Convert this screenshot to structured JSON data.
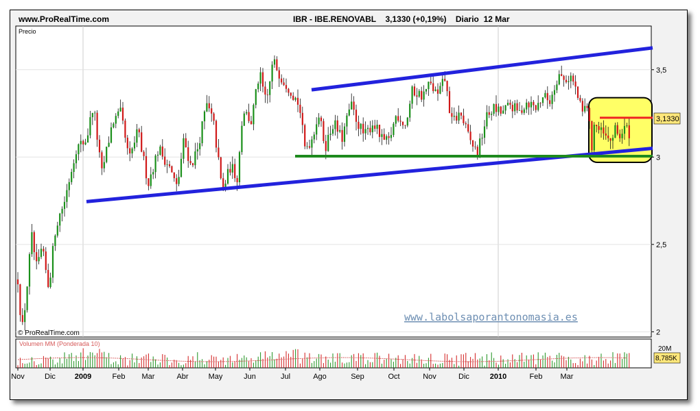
{
  "header": {
    "site": "www.ProRealTime.com",
    "instrument": "IBR - IBE.RENOVABL",
    "price": "3,1330 (+0,19%)",
    "period": "Diario",
    "date": "12 Mar"
  },
  "price_panel": {
    "label": "Precio",
    "credit": "© ProRealTime.com",
    "watermark": "www.labolsaporantonomasia.es",
    "last_price_label": "3,1330"
  },
  "volume_panel": {
    "label": "Volumen MM (Ponderada 10)",
    "axis_label": "20M",
    "last_volume_label": "8,785K"
  },
  "colors": {
    "up": "#1a8f1a",
    "down": "#d01818",
    "trendline": "#2222dd",
    "support": "#1e8a1e",
    "resistance": "#ee2222",
    "highlight_fill": "#ffff66",
    "last_price_box": "#ffe77a"
  },
  "chart_data": {
    "type": "candlestick",
    "x_ticks": [
      "Nov",
      "Dic",
      "2009",
      "Feb",
      "Mar",
      "Abr",
      "May",
      "Jun",
      "Jul",
      "Ago",
      "Sep",
      "Oct",
      "Nov",
      "Dic",
      "2010",
      "Feb",
      "Mar"
    ],
    "y_ticks": [
      "3,5",
      "3",
      "2,5",
      "2"
    ],
    "y_tick_values": [
      3.5,
      3.0,
      2.5,
      2.0
    ],
    "ylim": [
      1.97,
      3.75
    ],
    "close_path": [
      [
        0,
        2.3
      ],
      [
        6,
        2.0
      ],
      [
        12,
        2.2
      ],
      [
        20,
        2.55
      ],
      [
        28,
        2.35
      ],
      [
        35,
        2.48
      ],
      [
        45,
        2.25
      ],
      [
        55,
        2.6
      ],
      [
        68,
        2.75
      ],
      [
        85,
        3.05
      ],
      [
        100,
        3.1
      ],
      [
        110,
        3.3
      ],
      [
        122,
        2.9
      ],
      [
        138,
        3.2
      ],
      [
        150,
        3.25
      ],
      [
        162,
        2.98
      ],
      [
        175,
        3.15
      ],
      [
        190,
        2.85
      ],
      [
        205,
        3.05
      ],
      [
        220,
        2.95
      ],
      [
        232,
        2.82
      ],
      [
        242,
        3.1
      ],
      [
        252,
        2.95
      ],
      [
        262,
        3.05
      ],
      [
        275,
        3.3
      ],
      [
        285,
        3.2
      ],
      [
        298,
        2.8
      ],
      [
        310,
        2.95
      ],
      [
        320,
        2.88
      ],
      [
        328,
        3.28
      ],
      [
        340,
        3.2
      ],
      [
        352,
        3.48
      ],
      [
        362,
        3.3
      ],
      [
        372,
        3.55
      ],
      [
        385,
        3.45
      ],
      [
        395,
        3.4
      ],
      [
        410,
        3.3
      ],
      [
        418,
        3.05
      ],
      [
        428,
        3.1
      ],
      [
        438,
        3.25
      ],
      [
        448,
        3.06
      ],
      [
        460,
        3.2
      ],
      [
        472,
        3.1
      ],
      [
        485,
        3.3
      ],
      [
        495,
        3.2
      ],
      [
        505,
        3.12
      ],
      [
        518,
        3.2
      ],
      [
        530,
        3.1
      ],
      [
        540,
        3.08
      ],
      [
        552,
        3.25
      ],
      [
        565,
        3.18
      ],
      [
        575,
        3.38
      ],
      [
        590,
        3.35
      ],
      [
        600,
        3.42
      ],
      [
        612,
        3.35
      ],
      [
        622,
        3.45
      ],
      [
        632,
        3.2
      ],
      [
        645,
        3.25
      ],
      [
        658,
        3.1
      ],
      [
        670,
        3.02
      ],
      [
        682,
        3.22
      ],
      [
        692,
        3.28
      ],
      [
        705,
        3.25
      ],
      [
        718,
        3.3
      ],
      [
        730,
        3.25
      ],
      [
        742,
        3.32
      ],
      [
        755,
        3.28
      ],
      [
        765,
        3.35
      ],
      [
        775,
        3.32
      ],
      [
        788,
        3.48
      ],
      [
        795,
        3.44
      ],
      [
        806,
        3.46
      ],
      [
        812,
        3.4
      ],
      [
        822,
        3.25
      ],
      [
        830,
        3.3
      ],
      [
        836,
        3.05
      ],
      [
        840,
        3.2
      ],
      [
        847,
        3.15
      ],
      [
        855,
        3.12
      ],
      [
        862,
        3.08
      ],
      [
        870,
        3.15
      ],
      [
        878,
        3.12
      ],
      [
        885,
        3.17
      ],
      [
        893,
        3.13
      ]
    ],
    "trendlines": [
      {
        "name": "lower-channel",
        "points": [
          [
            100,
            2.745
          ],
          [
            925,
            3.05
          ]
        ]
      },
      {
        "name": "upper-channel",
        "points": [
          [
            428,
            3.385
          ],
          [
            925,
            3.625
          ]
        ]
      },
      {
        "name": "support",
        "points": [
          [
            404,
            3.005
          ],
          [
            925,
            3.005
          ]
        ]
      },
      {
        "name": "resistance",
        "points": [
          [
            848,
            3.225
          ],
          [
            925,
            3.225
          ]
        ]
      }
    ],
    "highlight": {
      "from": [
        832,
        2.97
      ],
      "to": [
        924,
        3.34
      ]
    },
    "last_price": 3.133
  }
}
